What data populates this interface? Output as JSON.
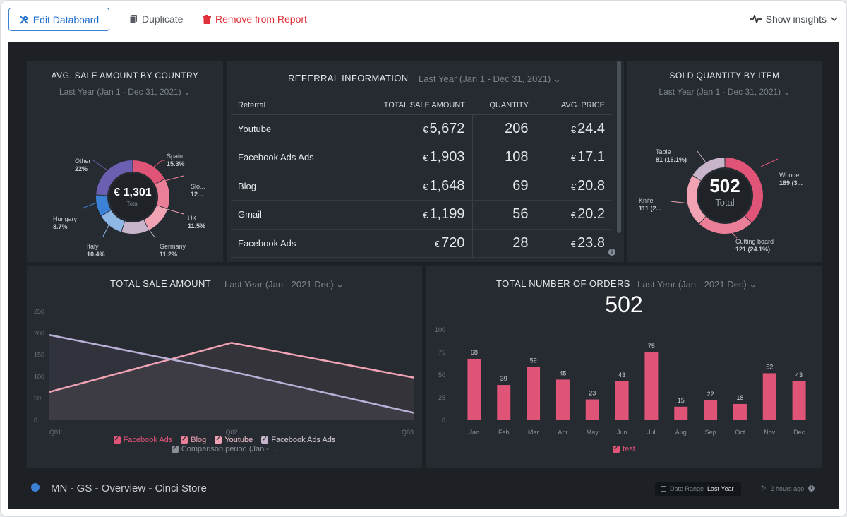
{
  "toolbar": {
    "edit_label": "Edit Databoard",
    "duplicate_label": "Duplicate",
    "remove_label": "Remove from Report",
    "insights_label": "Show insights"
  },
  "colors": {
    "accent_blue": "#1f6fd0",
    "danger": "#e0303a",
    "pink": "#e05577",
    "light_pink": "#f1a3b4",
    "lavender": "#b8b0d6",
    "purple": "#6a5fb0",
    "blue": "#3b82d6"
  },
  "widgets": {
    "avg_sale": {
      "title": "AVG. SALE AMOUNT BY COUNTRY",
      "period": "Last Year (Jan 1 - Dec 31, 2021)",
      "center_value": "€ 1,301",
      "center_label": "Total",
      "labels": [
        {
          "name": "Spain",
          "pct": "15.3%"
        },
        {
          "name": "Slo...",
          "pct": "12..."
        },
        {
          "name": "UK",
          "pct": "11.5%"
        },
        {
          "name": "Germany",
          "pct": "11.2%"
        },
        {
          "name": "Italy",
          "pct": "10.4%"
        },
        {
          "name": "Hungary",
          "pct": "8.7%"
        },
        {
          "name": "Other",
          "pct": "22%"
        }
      ]
    },
    "referral": {
      "title": "REFERRAL INFORMATION",
      "period": "Last Year (Jan 1 - Dec 31, 2021)",
      "columns": [
        "Referral",
        "TOTAL SALE AMOUNT",
        "QUANTITY",
        "AVG. PRICE"
      ],
      "currency": "€",
      "rows": [
        {
          "referral": "Youtube",
          "total": "5,672",
          "quantity": "206",
          "avg": "24.4"
        },
        {
          "referral": "Facebook Ads Ads",
          "total": "1,903",
          "quantity": "108",
          "avg": "17.1"
        },
        {
          "referral": "Blog",
          "total": "1,648",
          "quantity": "69",
          "avg": "20.8"
        },
        {
          "referral": "Gmail",
          "total": "1,199",
          "quantity": "56",
          "avg": "20.2"
        },
        {
          "referral": "Facebook Ads",
          "total": "720",
          "quantity": "28",
          "avg": "23.8"
        }
      ]
    },
    "sold_qty": {
      "title": "SOLD QUANTITY BY ITEM",
      "period": "Last Year (Jan 1 - Dec 31, 2021)",
      "center_value": "502",
      "center_label": "Total",
      "labels": [
        {
          "name": "Table",
          "detail": "81 (16.1%)"
        },
        {
          "name": "Woode...",
          "detail": "189 (3..."
        },
        {
          "name": "Knife",
          "detail": "111 (2..."
        },
        {
          "name": "Cutting board",
          "detail": "121 (24.1%)"
        }
      ]
    },
    "total_sale": {
      "title": "TOTAL SALE AMOUNT",
      "period": "Last Year (Jan - 2021 Dec)",
      "legend": [
        "Facebook Ads",
        "Blog",
        "Youtube",
        "Facebook Ads Ads",
        "Comparison period (Jan - ..."
      ]
    },
    "orders": {
      "title": "TOTAL NUMBER OF ORDERS",
      "period": "Last Year (Jan - 2021 Dec)",
      "big_value": "502",
      "legend": "test"
    }
  },
  "footer": {
    "title": "MN - GS - Overview - Cinci Store",
    "date_range_label": "Date Range",
    "date_range_value": "Last Year",
    "updated": "2 hours ago"
  },
  "chart_data": [
    {
      "type": "pie",
      "title": "AVG. SALE AMOUNT BY COUNTRY",
      "categories": [
        "Spain",
        "Slo...",
        "UK",
        "Germany",
        "Italy",
        "Hungary",
        "Other"
      ],
      "values": [
        15.3,
        12.3,
        11.5,
        11.2,
        10.4,
        8.7,
        22
      ],
      "colors": [
        "#e05577",
        "#ec7f98",
        "#f1a3b4",
        "#c8b5cc",
        "#8fb7e6",
        "#3b82d6",
        "#6a5fb0"
      ]
    },
    {
      "type": "pie",
      "title": "SOLD QUANTITY BY ITEM",
      "categories": [
        "Woode...",
        "Cutting board",
        "Knife",
        "Table"
      ],
      "values": [
        189,
        121,
        111,
        81
      ],
      "colors": [
        "#e05577",
        "#ec7f98",
        "#f1a3b4",
        "#c8b5cc"
      ]
    },
    {
      "type": "line",
      "title": "TOTAL SALE AMOUNT",
      "categories": [
        "Q01",
        "Q02",
        "Q03"
      ],
      "ylim": [
        0,
        250
      ],
      "yticks": [
        0,
        50,
        100,
        150,
        200,
        250
      ],
      "series": [
        {
          "name": "Facebook Ads",
          "values": [
            65,
            178,
            98
          ],
          "color": "#f1a3b4"
        },
        {
          "name": "Comparison period (Jan - ...",
          "values": [
            196,
            112,
            17
          ],
          "color": "#b8b0d6"
        }
      ]
    },
    {
      "type": "bar",
      "title": "TOTAL NUMBER OF ORDERS",
      "categories": [
        "Jan",
        "Feb",
        "Mar",
        "Apr",
        "May",
        "Jun",
        "Jul",
        "Aug",
        "Sep",
        "Oct",
        "Nov",
        "Dec"
      ],
      "ylim": [
        0,
        100
      ],
      "yticks": [
        0,
        25,
        50,
        75,
        100
      ],
      "series": [
        {
          "name": "test",
          "values": [
            68,
            39,
            59,
            45,
            23,
            43,
            75,
            15,
            22,
            18,
            52,
            43
          ],
          "color": "#e05577"
        }
      ]
    }
  ]
}
